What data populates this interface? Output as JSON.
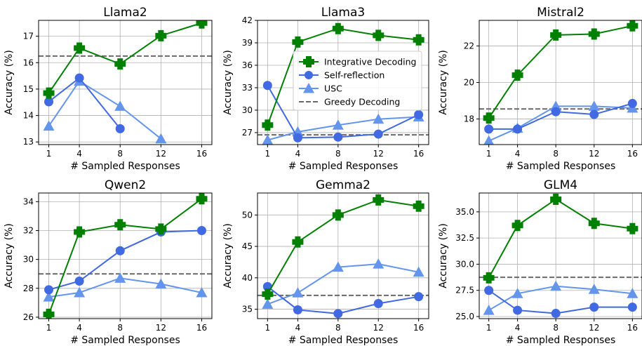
{
  "colors": {
    "integrative": "#008000",
    "self_reflection": "#4169e1",
    "usc": "#6495ed",
    "greedy": "#696969",
    "grid": "#b0b0b0"
  },
  "legend": {
    "placement": "upper-center (inside Llama3 panel)",
    "entries": [
      "Integrative Decoding",
      "Self-reflection",
      "USC",
      "Greedy Decoding"
    ]
  },
  "chart_data": [
    {
      "type": "line",
      "title": "Llama2",
      "xlabel": "# Sampled Responses",
      "ylabel": "Accuracy (%)",
      "x": [
        1,
        4,
        8,
        12,
        16
      ],
      "xlim": [
        0,
        17
      ],
      "ylim": [
        12.9,
        17.6
      ],
      "xticks": [
        "1",
        "4",
        "8",
        "12",
        "16"
      ],
      "yticks": [
        13,
        14,
        15,
        16,
        17
      ],
      "grid": true,
      "series": [
        {
          "name": "Integrative Decoding",
          "values": [
            14.85,
            16.55,
            15.95,
            17.02,
            17.5
          ]
        },
        {
          "name": "Self-reflection",
          "values": [
            14.52,
            15.42,
            13.5,
            null,
            null
          ]
        },
        {
          "name": "USC",
          "values": [
            13.6,
            15.3,
            14.35,
            13.12,
            null
          ]
        }
      ],
      "greedy": 16.25
    },
    {
      "type": "line",
      "title": "Llama3",
      "xlabel": "# Sampled Responses",
      "ylabel": "Accuracy (%)",
      "x": [
        1,
        4,
        8,
        12,
        16
      ],
      "xlim": [
        0,
        17
      ],
      "ylim": [
        25.4,
        42
      ],
      "xticks": [
        "1",
        "4",
        "8",
        "12",
        "16"
      ],
      "yticks": [
        27,
        30,
        33,
        36,
        39,
        42
      ],
      "grid": true,
      "series": [
        {
          "name": "Integrative Decoding",
          "values": [
            28.0,
            39.1,
            40.9,
            40.0,
            39.4
          ]
        },
        {
          "name": "Self-reflection",
          "values": [
            33.3,
            26.3,
            26.4,
            26.8,
            29.4
          ]
        },
        {
          "name": "USC",
          "values": [
            26.0,
            27.1,
            28.0,
            28.8,
            29.1
          ]
        }
      ],
      "greedy": 26.7
    },
    {
      "type": "line",
      "title": "Mistral2",
      "xlabel": "# Sampled Responses",
      "ylabel": "Accuracy (%)",
      "x": [
        1,
        4,
        8,
        12,
        16
      ],
      "xlim": [
        0,
        17
      ],
      "ylim": [
        16.6,
        23.4
      ],
      "xticks": [
        "1",
        "4",
        "8",
        "12",
        "16"
      ],
      "yticks": [
        18,
        20,
        22
      ],
      "grid": true,
      "series": [
        {
          "name": "Integrative Decoding",
          "values": [
            18.05,
            20.4,
            22.6,
            22.65,
            23.1
          ]
        },
        {
          "name": "Self-reflection",
          "values": [
            17.45,
            17.45,
            18.4,
            18.25,
            18.85
          ]
        },
        {
          "name": "USC",
          "values": [
            16.8,
            17.5,
            18.7,
            18.7,
            18.6
          ]
        }
      ],
      "greedy": 18.55
    },
    {
      "type": "line",
      "title": "Qwen2",
      "xlabel": "# Sampled Responses",
      "ylabel": "Accuracy (%)",
      "x": [
        1,
        4,
        8,
        12,
        16
      ],
      "xlim": [
        0,
        17
      ],
      "ylim": [
        25.9,
        34.6
      ],
      "xticks": [
        "1",
        "4",
        "8",
        "12",
        "16"
      ],
      "yticks": [
        26,
        28,
        30,
        32,
        34
      ],
      "grid": true,
      "series": [
        {
          "name": "Integrative Decoding",
          "values": [
            26.2,
            31.9,
            32.4,
            32.1,
            34.2
          ]
        },
        {
          "name": "Self-reflection",
          "values": [
            27.9,
            28.5,
            30.6,
            31.9,
            32.0
          ]
        },
        {
          "name": "USC",
          "values": [
            27.4,
            27.7,
            28.7,
            28.3,
            27.7
          ]
        }
      ],
      "greedy": 29.0
    },
    {
      "type": "line",
      "title": "Gemma2",
      "xlabel": "# Sampled Responses",
      "ylabel": "Accuracy (%)",
      "x": [
        1,
        4,
        8,
        12,
        16
      ],
      "xlim": [
        0,
        17
      ],
      "ylim": [
        33.5,
        53.5
      ],
      "xticks": [
        "1",
        "4",
        "8",
        "12",
        "16"
      ],
      "yticks": [
        35,
        40,
        45,
        50
      ],
      "grid": true,
      "series": [
        {
          "name": "Integrative Decoding",
          "values": [
            37.4,
            45.7,
            50.0,
            52.4,
            51.4
          ]
        },
        {
          "name": "Self-reflection",
          "values": [
            38.6,
            34.9,
            34.3,
            35.9,
            37.0
          ]
        },
        {
          "name": "USC",
          "values": [
            35.8,
            37.6,
            41.7,
            42.2,
            40.9
          ]
        }
      ],
      "greedy": 37.2
    },
    {
      "type": "line",
      "title": "GLM4",
      "xlabel": "# Sampled Responses",
      "ylabel": "Accuracy (%)",
      "x": [
        1,
        4,
        8,
        12,
        16
      ],
      "xlim": [
        0,
        17
      ],
      "ylim": [
        24.8,
        36.8
      ],
      "xticks": [
        "1",
        "4",
        "8",
        "12",
        "16"
      ],
      "yticks": [
        "25.0",
        "27.5",
        "30.0",
        "32.5",
        "35.0"
      ],
      "grid": true,
      "series": [
        {
          "name": "Integrative Decoding",
          "values": [
            28.7,
            33.7,
            36.2,
            33.9,
            33.4
          ]
        },
        {
          "name": "Self-reflection",
          "values": [
            27.5,
            25.6,
            25.3,
            25.9,
            25.9
          ]
        },
        {
          "name": "USC",
          "values": [
            25.6,
            27.2,
            27.9,
            27.6,
            27.2
          ]
        }
      ],
      "greedy": 28.75
    }
  ]
}
